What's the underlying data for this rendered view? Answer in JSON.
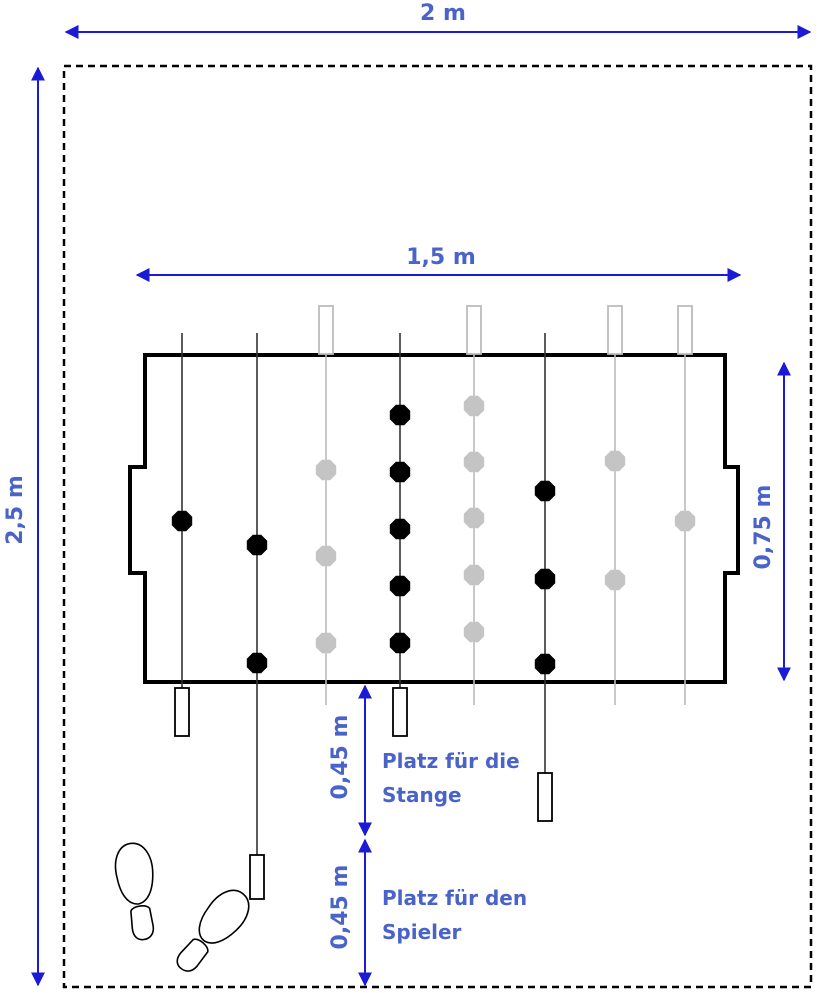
{
  "dimensions": {
    "room_width": "2 m",
    "room_depth": "2,5 m",
    "table_length": "1,5 m",
    "table_width": "0,75 m",
    "rod_clearance": "0,45 m",
    "player_clearance": "0,45 m"
  },
  "notes": {
    "rod_space_line1": "Platz für die",
    "rod_space_line2": "Stange",
    "player_space_line1": "Platz für den",
    "player_space_line2": "Spieler"
  },
  "colors": {
    "dimension_arrow": "#1b1bd6",
    "label_text": "#4a63c8",
    "team_near": "#000000",
    "team_far": "#c4c4c4",
    "outline": "#000000"
  }
}
